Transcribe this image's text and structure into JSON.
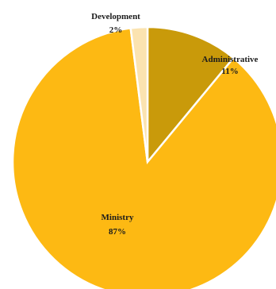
{
  "chart_data": {
    "type": "pie",
    "start_angle_deg": 0,
    "direction": "clockwise",
    "slices": [
      {
        "name": "Administrative",
        "value": 11,
        "label": "Administrative",
        "pct_label": "11%",
        "color": "#C99A0A"
      },
      {
        "name": "Ministry",
        "value": 87,
        "label": "Ministry",
        "pct_label": "87%",
        "color": "#FDB913"
      },
      {
        "name": "Development",
        "value": 2,
        "label": "Development",
        "pct_label": "2%",
        "color": "#FBE3B0"
      }
    ],
    "legend": "none",
    "title": ""
  }
}
